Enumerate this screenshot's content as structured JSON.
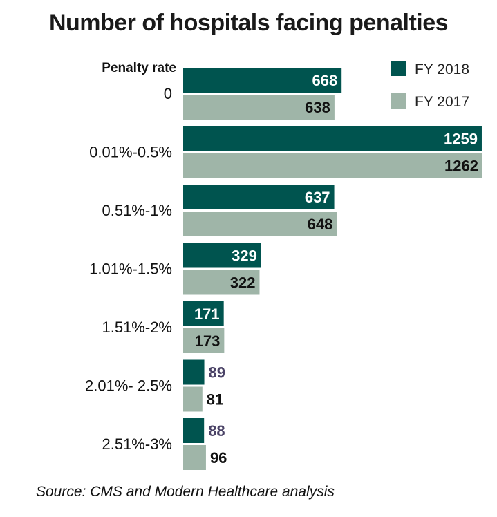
{
  "chart_data": {
    "type": "bar",
    "orientation": "horizontal",
    "title": "Number of hospitals facing penalties",
    "category_header": "Penalty rate",
    "categories": [
      "0",
      "0.01%-0.5%",
      "0.51%-1%",
      "1.01%-1.5%",
      "1.51%-2%",
      "2.01%- 2.5%",
      "2.51%-3%"
    ],
    "series": [
      {
        "name": "FY 2018",
        "color": "#00544f",
        "values": [
          668,
          1259,
          637,
          329,
          171,
          89,
          88
        ]
      },
      {
        "name": "FY 2017",
        "color": "#9fb5a8",
        "values": [
          638,
          1262,
          648,
          322,
          173,
          81,
          96
        ]
      }
    ],
    "xlim": [
      0,
      1262
    ],
    "grid": false,
    "legend": "top-right",
    "source": "Source: CMS and Modern Healthcare analysis"
  }
}
